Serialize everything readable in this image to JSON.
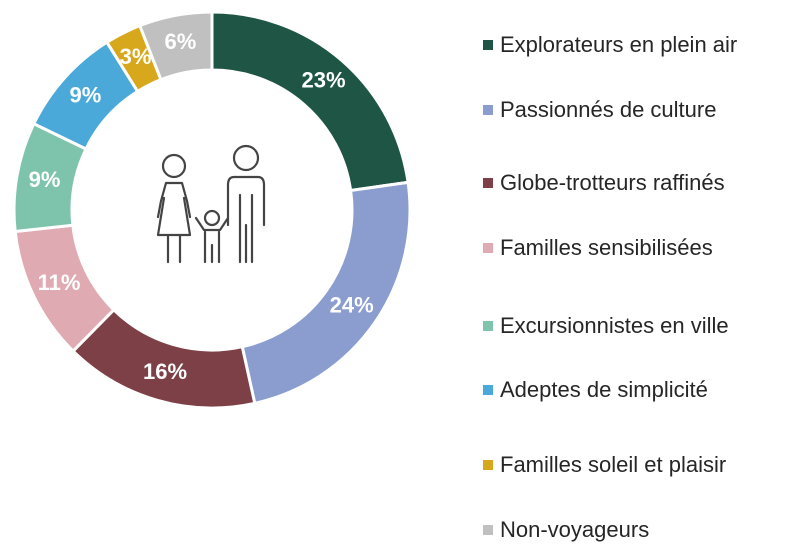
{
  "chart_data": {
    "type": "donut",
    "categories": [
      "Explorateurs en plein air",
      "Passionnés de culture",
      "Globe-trotteurs raffinés",
      "Familles sensibilisées",
      "Excursionnistes en ville",
      "Adeptes de simplicité",
      "Familles soleil et plaisir",
      "Non-voyageurs"
    ],
    "values": [
      23,
      24,
      16,
      11,
      9,
      9,
      3,
      6
    ],
    "value_labels": [
      "23%",
      "24%",
      "16%",
      "11%",
      "9%",
      "9%",
      "3%",
      "6%"
    ],
    "colors": [
      "#1e5545",
      "#8b9dcf",
      "#7e4047",
      "#e0aab3",
      "#7ec4ac",
      "#4aa9d8",
      "#d8a81c",
      "#c0c0c0"
    ],
    "legend": "right"
  }
}
